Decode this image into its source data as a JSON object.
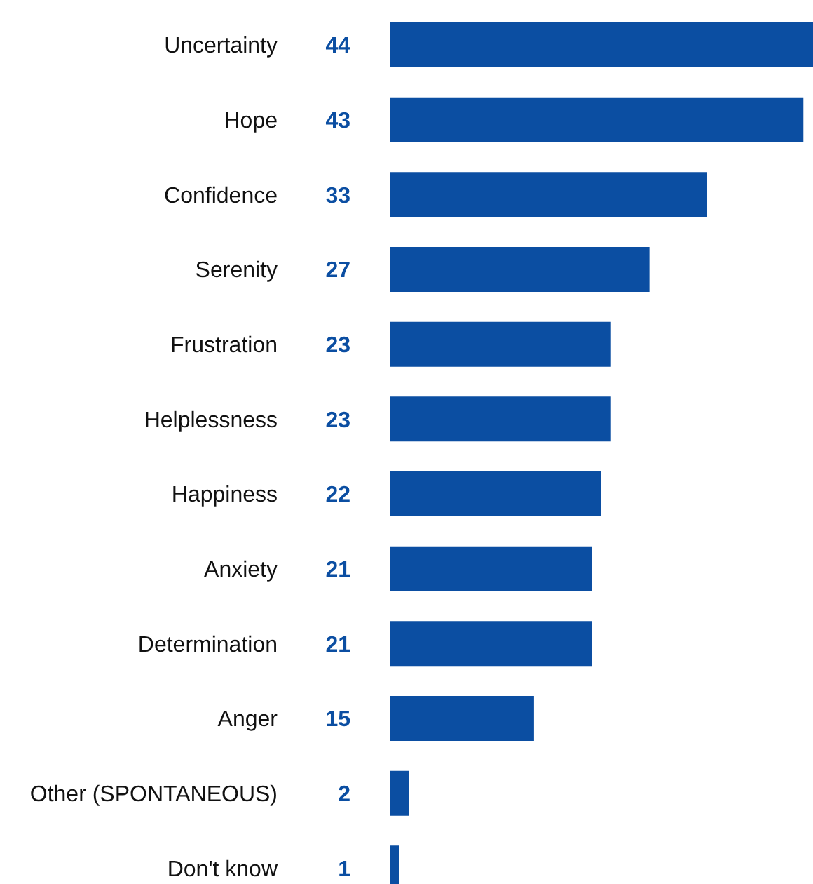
{
  "chart_data": {
    "type": "bar",
    "orientation": "horizontal",
    "categories": [
      "Uncertainty",
      "Hope",
      "Confidence",
      "Serenity",
      "Frustration",
      "Helplessness",
      "Happiness",
      "Anxiety",
      "Determination",
      "Anger",
      "Other (SPONTANEOUS)",
      "Don't know"
    ],
    "values": [
      44,
      43,
      33,
      27,
      23,
      23,
      22,
      21,
      21,
      15,
      2,
      1
    ],
    "color": "#0b4ea2",
    "data_labels": true,
    "grid": false,
    "legend": false
  }
}
